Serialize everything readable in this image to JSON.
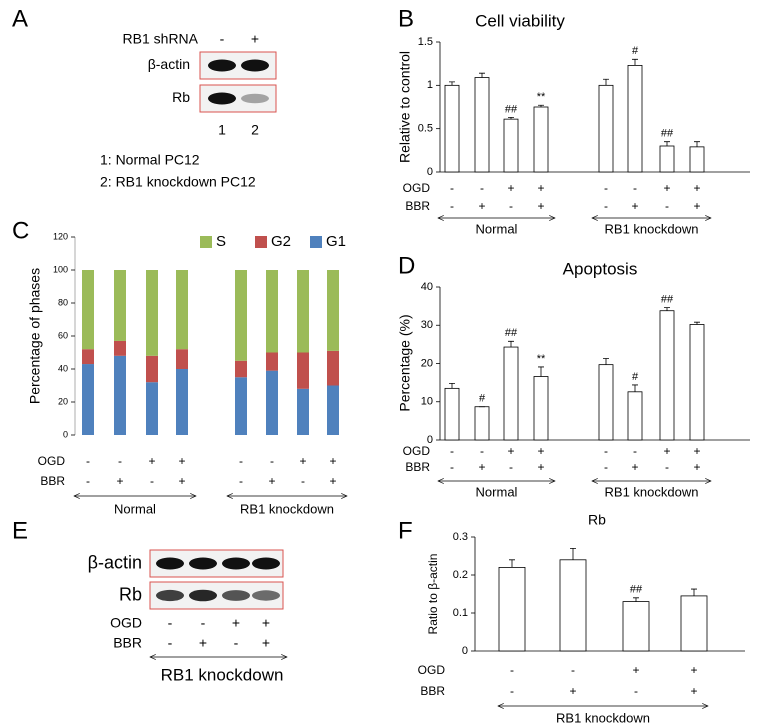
{
  "blots": [
    {
      "panel": "A",
      "header_label": "RB1 shRNA",
      "header_signs": [
        "-",
        "+"
      ],
      "rows": [
        "β-actin",
        "Rb"
      ],
      "lane_numbers": [
        "1",
        "2"
      ],
      "notes": [
        "1: Normal PC12",
        "2: RB1 knockdown PC12"
      ]
    },
    {
      "panel": "E",
      "rows": [
        "β-actin",
        "Rb"
      ],
      "conditions": [
        {
          "name": "OGD",
          "signs": [
            "-",
            "-",
            "+",
            "+"
          ]
        },
        {
          "name": "BBR",
          "signs": [
            "-",
            "+",
            "-",
            "+"
          ]
        }
      ],
      "group": "RB1 knockdown"
    }
  ],
  "chart_data": [
    {
      "panel": "B",
      "type": "bar",
      "title": "Cell viability",
      "ylabel": "Relative to control",
      "color": "#ffffff",
      "values": [
        1.0,
        1.09,
        0.61,
        0.75,
        1.0,
        1.23,
        0.3,
        0.29
      ],
      "errors": [
        0.04,
        0.05,
        0.02,
        0.02,
        0.07,
        0.07,
        0.05,
        0.06
      ],
      "annotations": [
        null,
        null,
        "##",
        "**",
        null,
        "#",
        "##",
        null
      ],
      "conditions": [
        {
          "name": "OGD",
          "signs": [
            "-",
            "-",
            "+",
            "+",
            "-",
            "-",
            "+",
            "+"
          ]
        },
        {
          "name": "BBR",
          "signs": [
            "-",
            "+",
            "-",
            "+",
            "-",
            "+",
            "-",
            "+"
          ]
        }
      ],
      "groups": [
        "Normal",
        "RB1 knockdown"
      ],
      "ylim": [
        0,
        1.5
      ],
      "yticks": [
        0,
        0.5,
        1,
        1.5
      ]
    },
    {
      "panel": "C",
      "type": "stacked_bar",
      "ylabel": "Percentage of phases",
      "legend": "top-right",
      "series": [
        {
          "name": "G1",
          "color": "#4f81bd",
          "values": [
            43,
            48,
            32,
            40,
            35,
            39,
            28,
            30
          ]
        },
        {
          "name": "G2",
          "color": "#c0504d",
          "values": [
            9,
            9,
            16,
            12,
            10,
            11,
            22,
            21
          ]
        },
        {
          "name": "S",
          "color": "#9bbb59",
          "values": [
            48,
            43,
            52,
            48,
            55,
            50,
            50,
            49
          ]
        }
      ],
      "conditions": [
        {
          "name": "OGD",
          "signs": [
            "-",
            "-",
            "+",
            "+",
            "-",
            "-",
            "+",
            "+"
          ]
        },
        {
          "name": "BBR",
          "signs": [
            "-",
            "+",
            "-",
            "+",
            "-",
            "+",
            "-",
            "+"
          ]
        }
      ],
      "groups": [
        "Normal",
        "RB1 knockdown"
      ],
      "ylim": [
        0,
        120
      ],
      "yticks": [
        0,
        20,
        40,
        60,
        80,
        100,
        120
      ]
    },
    {
      "panel": "D",
      "type": "bar",
      "title": "Apoptosis",
      "ylabel": "Percentage (%)",
      "color": "#ffffff",
      "values": [
        13.5,
        8.7,
        24.3,
        16.6,
        19.7,
        12.6,
        33.8,
        30.2
      ],
      "errors": [
        1.3,
        0,
        1.5,
        2.5,
        1.6,
        1.8,
        0.8,
        0.6
      ],
      "annotations": [
        null,
        "#",
        "##",
        "**",
        null,
        "#",
        "##",
        null
      ],
      "conditions": [
        {
          "name": "OGD",
          "signs": [
            "-",
            "-",
            "+",
            "+",
            "-",
            "-",
            "+",
            "+"
          ]
        },
        {
          "name": "BBR",
          "signs": [
            "-",
            "+",
            "-",
            "+",
            "-",
            "+",
            "-",
            "+"
          ]
        }
      ],
      "groups": [
        "Normal",
        "RB1 knockdown"
      ],
      "ylim": [
        0,
        40
      ],
      "yticks": [
        0,
        10,
        20,
        30,
        40
      ]
    },
    {
      "panel": "F",
      "type": "bar",
      "title": "Rb",
      "ylabel": "Ratio to β-actin",
      "color": "#ffffff",
      "values": [
        0.22,
        0.24,
        0.13,
        0.145
      ],
      "errors": [
        0.02,
        0.03,
        0.01,
        0.018
      ],
      "annotations": [
        null,
        null,
        "##",
        null
      ],
      "conditions": [
        {
          "name": "OGD",
          "signs": [
            "-",
            "-",
            "+",
            "+"
          ]
        },
        {
          "name": "BBR",
          "signs": [
            "-",
            "+",
            "-",
            "+"
          ]
        }
      ],
      "groups": [
        "RB1 knockdown"
      ],
      "ylim": [
        0,
        0.3
      ],
      "yticks": [
        0,
        0.1,
        0.2,
        0.3
      ]
    }
  ]
}
